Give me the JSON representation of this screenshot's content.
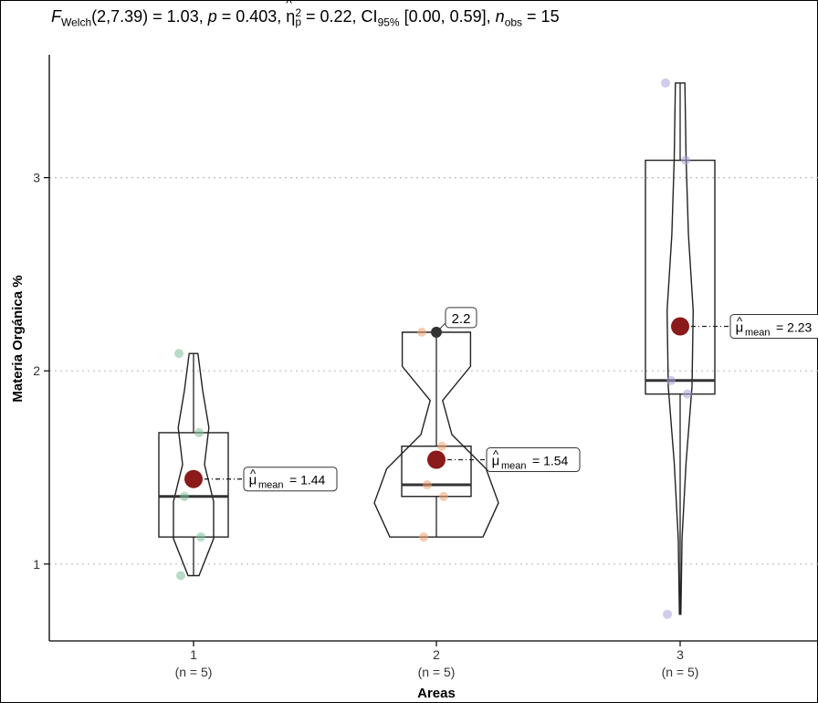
{
  "stats": {
    "f_symbol": "F",
    "f_sub": "Welch",
    "f_value": "(2,7.39) = 1.03, ",
    "p_symbol": "p",
    "p_value": " = 0.403, ",
    "eta_symbol": "η",
    "eta_hat": "^",
    "eta_sup": "2",
    "eta_sub": "p",
    "eta_value": " = 0.22, CI",
    "ci_sub": "95%",
    "ci_value": " [0.00, 0.59], ",
    "n_symbol": "n",
    "n_sub": "obs",
    "n_value": " = 15"
  },
  "chart_data": {
    "type": "violin_box",
    "xlabel": "Areas",
    "ylabel": "Materia Orgánica %",
    "ylim": [
      0.6,
      3.6
    ],
    "yticks": [
      1,
      2,
      3
    ],
    "grid": "horizontal-dotted",
    "categories": [
      {
        "name": "1",
        "n_label": "(n = 5)",
        "color": "#7fbf9a",
        "points": [
          0.94,
          1.14,
          1.35,
          1.68,
          2.09
        ],
        "box": {
          "q1": 1.14,
          "median": 1.35,
          "q3": 1.68,
          "whisker_low": 0.94,
          "whisker_high": 2.09
        },
        "mean": 1.44,
        "mean_label": "= 1.44"
      },
      {
        "name": "2",
        "n_label": "(n = 5)",
        "color": "#f0a070",
        "points": [
          1.14,
          1.35,
          1.41,
          1.61,
          2.2
        ],
        "box": {
          "q1": 1.35,
          "median": 1.41,
          "q3": 1.61,
          "whisker_low": 1.14,
          "whisker_high": 2.2
        },
        "mean": 1.54,
        "mean_label": "= 1.54",
        "outlier": {
          "value": 2.2,
          "label": "2.2"
        }
      },
      {
        "name": "3",
        "n_label": "(n = 5)",
        "color": "#a9a3d8",
        "points": [
          0.74,
          1.88,
          1.95,
          3.09,
          3.49
        ],
        "box": {
          "q1": 1.88,
          "median": 1.95,
          "q3": 3.09,
          "whisker_low": 0.74,
          "whisker_high": 3.49
        },
        "mean": 2.23,
        "mean_label": "= 2.23"
      }
    ],
    "mean_symbol": "μ",
    "mean_hat": "^",
    "mean_sub": "mean",
    "mean_color": "#8b1a1a"
  }
}
